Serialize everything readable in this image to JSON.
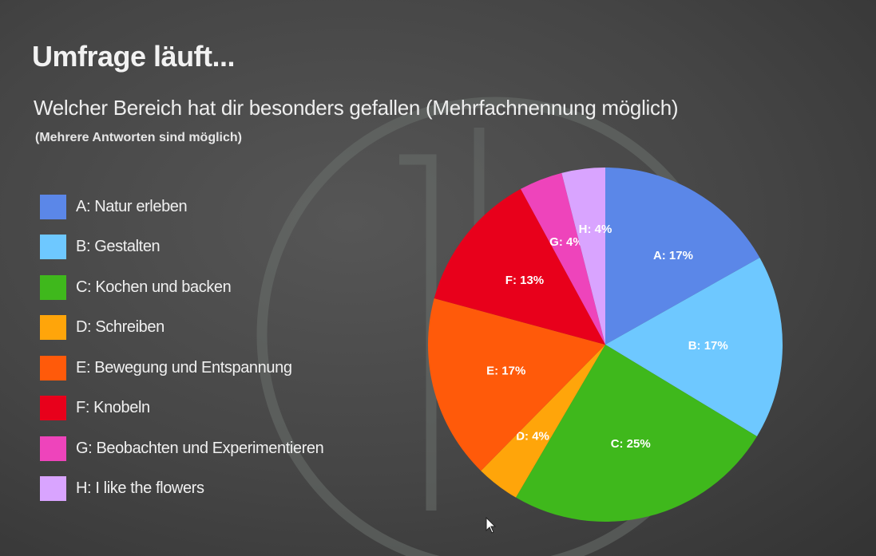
{
  "header": {
    "title": "Umfrage läuft...",
    "question": "Welcher Bereich hat dir besonders gefallen (Mehrfachnennung möglich)",
    "hint": "(Mehrere Antworten sind möglich)"
  },
  "legend": [
    {
      "label": "A: Natur erleben",
      "color": "#5b87e8"
    },
    {
      "label": "B: Gestalten",
      "color": "#6ec8ff"
    },
    {
      "label": "C: Kochen und backen",
      "color": "#3fb81c"
    },
    {
      "label": "D: Schreiben",
      "color": "#ffa50a"
    },
    {
      "label": "E: Bewegung und Entspannung",
      "color": "#ff5a0a"
    },
    {
      "label": "F: Knobeln",
      "color": "#e8001b"
    },
    {
      "label": "G: Beobachten und Experimentieren",
      "color": "#ee44bb"
    },
    {
      "label": "H: I like the flowers",
      "color": "#d9a4ff"
    }
  ],
  "chart_data": {
    "type": "pie",
    "categories": [
      "A: Natur erleben",
      "B: Gestalten",
      "C: Kochen und backen",
      "D: Schreiben",
      "E: Bewegung und Entspannung",
      "F: Knobeln",
      "G: Beobachten und Experimentieren",
      "H: I like the flowers"
    ],
    "values": [
      17,
      17,
      25,
      4,
      17,
      13,
      4,
      4
    ],
    "labels": [
      "A: 17%",
      "B: 17%",
      "C: 25%",
      "D: 4%",
      "E: 17%",
      "F: 13%",
      "G: 4%",
      "H: 4%"
    ],
    "colors": [
      "#5b87e8",
      "#6ec8ff",
      "#3fb81c",
      "#ffa50a",
      "#ff5a0a",
      "#e8001b",
      "#ee44bb",
      "#d9a4ff"
    ],
    "title": "Welcher Bereich hat dir besonders gefallen (Mehrfachnennung möglich)",
    "legend_position": "left"
  }
}
